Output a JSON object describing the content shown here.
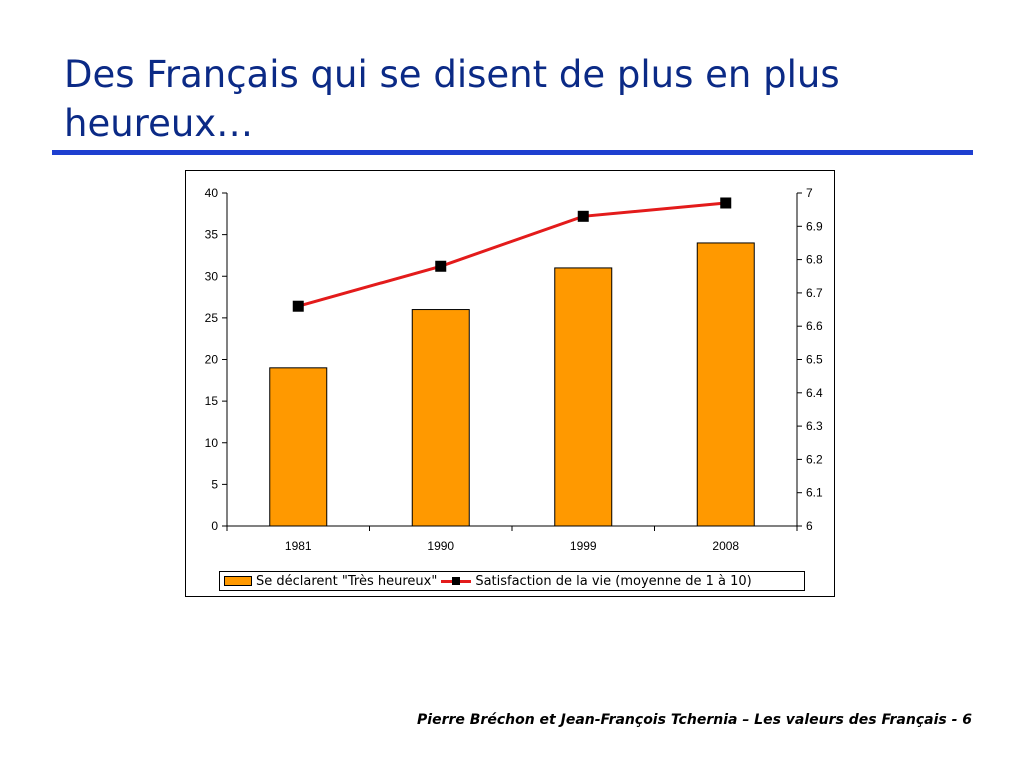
{
  "slide": {
    "title": "Des Français qui se disent de plus en plus heureux…",
    "footer": "Pierre Bréchon et Jean-François Tchernia – Les valeurs des Français - 6",
    "rule_color": "#1e3fd0",
    "title_color": "#0b2a86"
  },
  "chart_data": {
    "type": "bar",
    "categories": [
      "1981",
      "1990",
      "1999",
      "2008"
    ],
    "series": [
      {
        "name": "Se déclarent \"Très heureux\"",
        "type": "bar",
        "axis": "left",
        "values": [
          19,
          26,
          31,
          34
        ],
        "color": "#ff9900"
      },
      {
        "name": "Satisfaction de la vie (moyenne de 1 à 10)",
        "type": "line",
        "axis": "right",
        "values": [
          6.66,
          6.78,
          6.93,
          6.97
        ],
        "color": "#e31b1b",
        "marker": "square",
        "marker_color": "#000000"
      }
    ],
    "y_left": {
      "range": [
        0,
        40
      ],
      "ticks": [
        "0",
        "5",
        "10",
        "15",
        "20",
        "25",
        "30",
        "35",
        "40"
      ]
    },
    "y_right": {
      "range": [
        6,
        7
      ],
      "ticks": [
        "6",
        "6.1",
        "6.2",
        "6.3",
        "6.4",
        "6.5",
        "6.6",
        "6.7",
        "6.8",
        "6.9",
        "7"
      ]
    },
    "grid": false,
    "legend": "bottom"
  }
}
